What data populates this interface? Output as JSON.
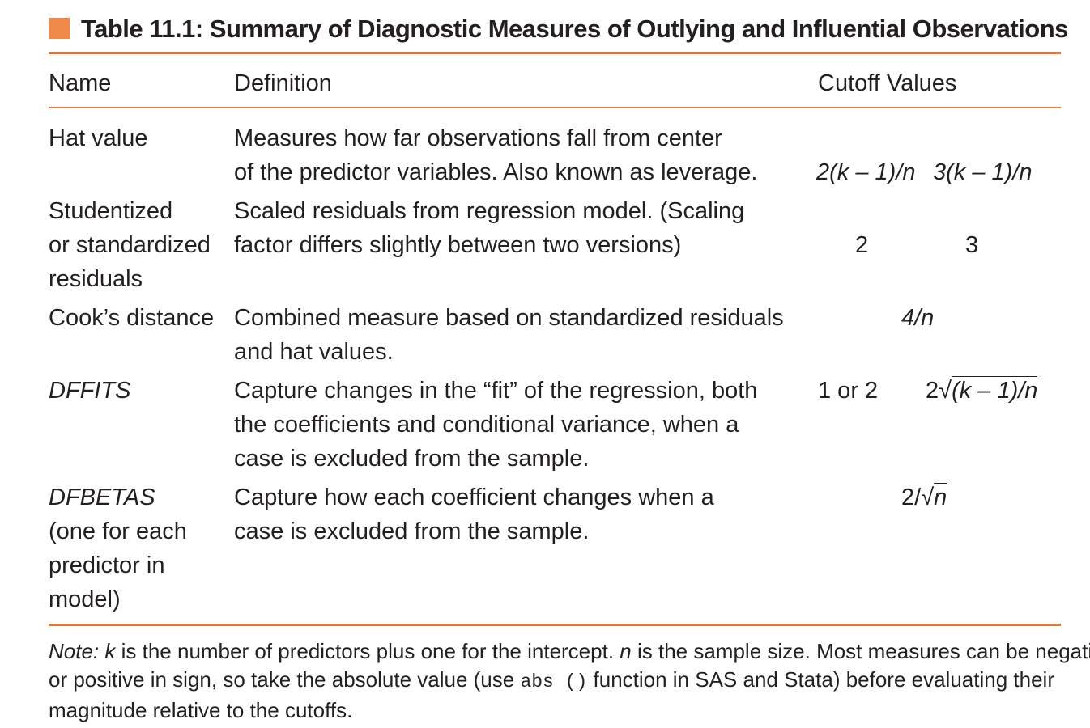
{
  "caption": {
    "title": "Table 11.1:  Summary of Diagnostic Measures of Outlying and Influential Observations",
    "accent_color": "#f08a4b"
  },
  "columns": {
    "name": "Name",
    "definition": "Definition",
    "cutoff": "Cutoff Values"
  },
  "rows": [
    {
      "name": [
        "Hat value"
      ],
      "definition": [
        "Measures how far observations fall from center",
        "of the predictor variables. Also known as leverage."
      ],
      "cutoff_1": "2(k – 1)/n",
      "cutoff_2": "3(k – 1)/n"
    },
    {
      "name": [
        "Studentized",
        "or standardized",
        "residuals"
      ],
      "definition": [
        "Scaled residuals from regression model. (Scaling",
        "factor differs slightly between two versions)"
      ],
      "cutoff_1": "2",
      "cutoff_2": "3"
    },
    {
      "name": [
        "Cook’s distance"
      ],
      "definition": [
        "Combined measure based on standardized residuals",
        "and hat values."
      ],
      "cutoff": "4/n"
    },
    {
      "name": [
        "DFFITS"
      ],
      "definition": [
        "Capture changes in the “fit” of the regression, both",
        "the coefficients and conditional variance, when a",
        "case is excluded from the sample."
      ],
      "cutoff_1": "1 or 2",
      "cutoff_2_prefix": "2",
      "cutoff_2_radicand": "(k – 1)/n"
    },
    {
      "name": [
        "DFBETAS",
        "(one for each",
        "predictor in",
        "model)"
      ],
      "definition": [
        "Capture how each coefficient changes when a",
        "case is excluded from the sample."
      ],
      "cutoff_prefix": "2/",
      "cutoff_radicand": "n"
    }
  ],
  "note": {
    "label": "Note:",
    "k": "k",
    "part1": " is the number of predictors plus one for the intercept. ",
    "n": "n",
    "part2": " is the sample size. Most measures can be negative",
    "line2_a": "or positive in sign, so take the absolute value (use ",
    "code": "abs ()",
    "line2_b": " function in SAS and Stata) before evaluating their",
    "line3": "magnitude relative to the cutoffs."
  },
  "colors": {
    "rule": "#e07a3c",
    "text": "#231f20"
  }
}
